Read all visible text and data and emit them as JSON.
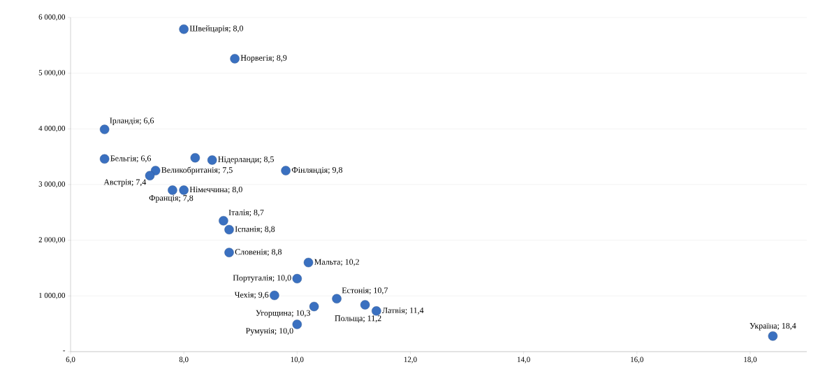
{
  "chart_data": {
    "type": "scatter",
    "x": [
      8.0,
      8.9,
      6.6,
      6.6,
      7.5,
      7.4,
      7.8,
      8.0,
      8.2,
      8.5,
      9.8,
      8.7,
      8.8,
      8.8,
      10.2,
      10.0,
      9.6,
      10.3,
      10.7,
      11.2,
      11.4,
      10.0,
      18.4
    ],
    "series": [
      {
        "color": "#3a70c0",
        "values": [
          5790,
          5260,
          3990,
          3460,
          3250,
          3160,
          2900,
          2900,
          3480,
          3440,
          3250,
          2350,
          2190,
          1780,
          1600,
          1310,
          1010,
          810,
          950,
          840,
          730,
          490,
          280
        ]
      }
    ],
    "annotations": [
      {
        "text": "Швейцарія; 8,0",
        "x": 8.0,
        "y": 5790
      },
      {
        "text": "Норвегія; 8,9",
        "x": 8.9,
        "y": 5260
      },
      {
        "text": "Ірландія; 6,6",
        "x": 6.6,
        "y": 3990
      },
      {
        "text": "Бельгія; 6,6",
        "x": 6.6,
        "y": 3460
      },
      {
        "text": "Великобританія; 7,5",
        "x": 7.5,
        "y": 3250
      },
      {
        "text": "Австрія; 7,4",
        "x": 7.4,
        "y": 3160
      },
      {
        "text": "Франція; 7,8",
        "x": 7.8,
        "y": 2900
      },
      {
        "text": "Німеччина; 8,0",
        "x": 8.0,
        "y": 2900
      },
      {
        "text": "Нідерланди; 8,5",
        "x": 8.5,
        "y": 3440
      },
      {
        "text": "Фінляндія; 9,8",
        "x": 9.8,
        "y": 3250
      },
      {
        "text": "Італія; 8,7",
        "x": 8.7,
        "y": 2350
      },
      {
        "text": "Іспанія; 8,8",
        "x": 8.8,
        "y": 2190
      },
      {
        "text": "Словенія; 8,8",
        "x": 8.8,
        "y": 1780
      },
      {
        "text": "Мальта; 10,2",
        "x": 10.2,
        "y": 1600
      },
      {
        "text": "Португалія; 10,0",
        "x": 10.0,
        "y": 1310
      },
      {
        "text": "Чехія; 9,6",
        "x": 9.6,
        "y": 1010
      },
      {
        "text": "Угорщина; 10,3",
        "x": 10.3,
        "y": 810
      },
      {
        "text": "Естонія; 10,7",
        "x": 10.7,
        "y": 950
      },
      {
        "text": "Польща; 11,2",
        "x": 11.2,
        "y": 840
      },
      {
        "text": "Латвія; 11,4",
        "x": 11.4,
        "y": 730
      },
      {
        "text": "Румунія; 10,0",
        "x": 10.0,
        "y": 490
      },
      {
        "text": "Україна; 18,4",
        "x": 18.4,
        "y": 280
      }
    ],
    "xlim": [
      6,
      19
    ],
    "xticks": [
      {
        "value": 6,
        "label": "6,0"
      },
      {
        "value": 8,
        "label": "8,0"
      },
      {
        "value": 10,
        "label": "10,0"
      },
      {
        "value": 12,
        "label": "12,0"
      },
      {
        "value": 14,
        "label": "14,0"
      },
      {
        "value": 16,
        "label": "16,0"
      },
      {
        "value": 18,
        "label": "18,0"
      }
    ],
    "ylim": [
      0,
      6000
    ],
    "yticks": [
      {
        "value": 0,
        "label": "-"
      },
      {
        "value": 1000,
        "label": "1 000,00"
      },
      {
        "value": 2000,
        "label": "2 000,00"
      },
      {
        "value": 3000,
        "label": "3 000,00"
      },
      {
        "value": 4000,
        "label": "4 000,00"
      },
      {
        "value": 5000,
        "label": "5 000,00"
      },
      {
        "value": 6000,
        "label": "6 000,00"
      }
    ],
    "grid": "y"
  }
}
